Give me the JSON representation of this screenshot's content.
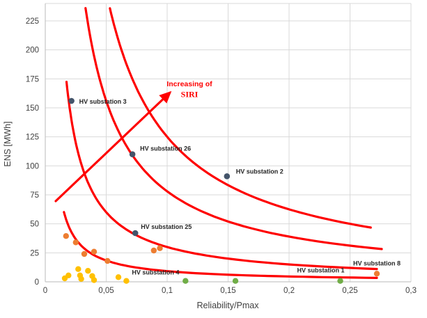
{
  "chart_data": {
    "type": "scatter",
    "title": "",
    "xlabel": "Reliability/Pmax",
    "ylabel": "ENS [MWh]",
    "xlim": [
      0,
      0.3
    ],
    "ylim": [
      0,
      240
    ],
    "grid": true,
    "grid_color": "#d9d9d9",
    "axis_line_color": "#c6c6c6",
    "tick_text_color": "#404040",
    "accent_red": "#fe0000",
    "x_ticks": {
      "values": [
        0,
        0.05,
        0.1,
        0.15,
        0.2,
        0.25,
        0.3
      ],
      "labels": [
        "0",
        "0,05",
        "0,1",
        "0,15",
        "0,2",
        "0,25",
        "0,3"
      ]
    },
    "y_ticks": {
      "values": [
        0,
        25,
        50,
        75,
        100,
        125,
        150,
        175,
        200,
        225
      ],
      "labels": [
        "0",
        "25",
        "50",
        "75",
        "100",
        "125",
        "150",
        "175",
        "200",
        "225"
      ]
    },
    "series": [
      {
        "name": "highlighted-substations",
        "color": "#44546A",
        "radius": 4.3,
        "points": [
          {
            "x": 0.0215,
            "y": 156,
            "label": "HV substation 3",
            "dx": 11,
            "dy": 4,
            "anchor": "start"
          },
          {
            "x": 0.0715,
            "y": 110,
            "label": "HV substation 26",
            "dx": 11,
            "dy": -5,
            "anchor": "start"
          },
          {
            "x": 0.149,
            "y": 91,
            "label": "HV substation 2",
            "dx": 13,
            "dy": -4,
            "anchor": "start"
          },
          {
            "x": 0.0738,
            "y": 42,
            "label": "HV substation 25",
            "dx": 8,
            "dy": -6,
            "anchor": "start"
          }
        ]
      },
      {
        "name": "orange-substations",
        "color": "#ED7D31",
        "radius": 4.2,
        "points": [
          {
            "x": 0.017,
            "y": 39.5
          },
          {
            "x": 0.025,
            "y": 34
          },
          {
            "x": 0.032,
            "y": 24
          },
          {
            "x": 0.04,
            "y": 26
          },
          {
            "x": 0.051,
            "y": 18
          },
          {
            "x": 0.089,
            "y": 27
          },
          {
            "x": 0.094,
            "y": 29
          },
          {
            "x": 0.272,
            "y": 7,
            "label": "HV substation 8",
            "dx": 0,
            "dy": -12,
            "anchor": "middle"
          }
        ]
      },
      {
        "name": "yellow-substations",
        "color": "#FFC000",
        "radius": 4.2,
        "points": [
          {
            "x": 0.016,
            "y": 3
          },
          {
            "x": 0.019,
            "y": 5.5
          },
          {
            "x": 0.027,
            "y": 11
          },
          {
            "x": 0.0285,
            "y": 5.5
          },
          {
            "x": 0.0295,
            "y": 2.5
          },
          {
            "x": 0.035,
            "y": 9.5
          },
          {
            "x": 0.0385,
            "y": 5
          },
          {
            "x": 0.04,
            "y": 1.5
          },
          {
            "x": 0.06,
            "y": 4
          },
          {
            "x": 0.0665,
            "y": 0.8,
            "label": "HV substation 4",
            "dx": 8,
            "dy": -9,
            "anchor": "start"
          }
        ]
      },
      {
        "name": "green-substations",
        "color": "#70AD47",
        "radius": 4.2,
        "points": [
          {
            "x": 0.115,
            "y": 0.8
          },
          {
            "x": 0.156,
            "y": 0.8
          },
          {
            "x": 0.242,
            "y": 0.8,
            "label": "HV substation 1",
            "dx": 6,
            "dy": -12,
            "anchor": "end"
          }
        ]
      }
    ],
    "iso_curves": {
      "name": "iso-SIRI-curves",
      "color": "#fe0000",
      "stroke_width": 3.2,
      "curves": [
        {
          "k": 0.92,
          "x_min": 0.0153,
          "x_max": 0.272
        },
        {
          "k": 3.0,
          "x_min": 0.0174,
          "x_max": 0.272
        },
        {
          "k": 7.8,
          "x_min": 0.033,
          "x_max": 0.276
        },
        {
          "k": 12.5,
          "x_min": 0.053,
          "x_max": 0.267
        }
      ]
    },
    "annotation": {
      "line1": "Increasing of",
      "line2": "SIRI",
      "color": "#fe0000",
      "arrow_from_data": [
        0.0086,
        69.5
      ],
      "arrow_to_data": [
        0.102,
        163
      ]
    }
  }
}
